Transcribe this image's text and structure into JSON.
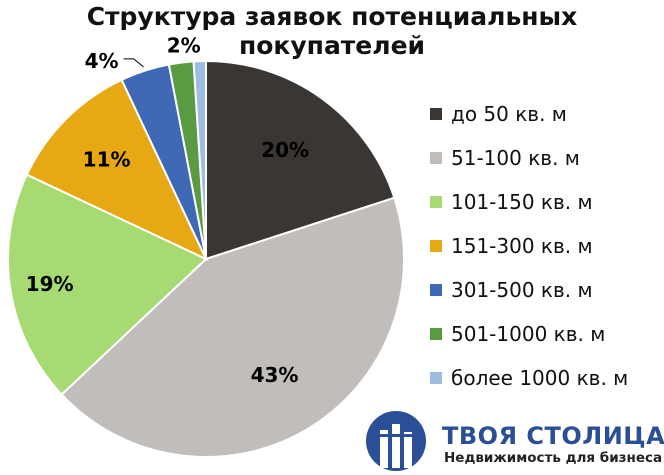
{
  "chart_data": {
    "type": "pie",
    "title": "Структура заявок потенциальных покупателей",
    "categories": [
      "до 50 кв. м",
      "51-100 кв. м",
      "101-150 кв. м",
      "151-300 кв. м",
      "301-500 кв. м",
      "501-1000 кв. м",
      "более 1000 кв. м"
    ],
    "values": [
      20,
      43,
      19,
      11,
      4,
      2,
      1
    ],
    "data_labels": [
      "20%",
      "43%",
      "19%",
      "11%",
      "4%",
      "2%",
      ""
    ],
    "colors": [
      "#3a3634",
      "#c0bdbb",
      "#a7da72",
      "#e6a914",
      "#3f68b5",
      "#5a9a42",
      "#9fbde0"
    ],
    "legend_placement": "right"
  },
  "logo": {
    "name": "ТВОЯ СТОЛИЦА",
    "registered": "®",
    "tagline": "Недвижимость для бизнеса",
    "color": "#2b4f96"
  }
}
